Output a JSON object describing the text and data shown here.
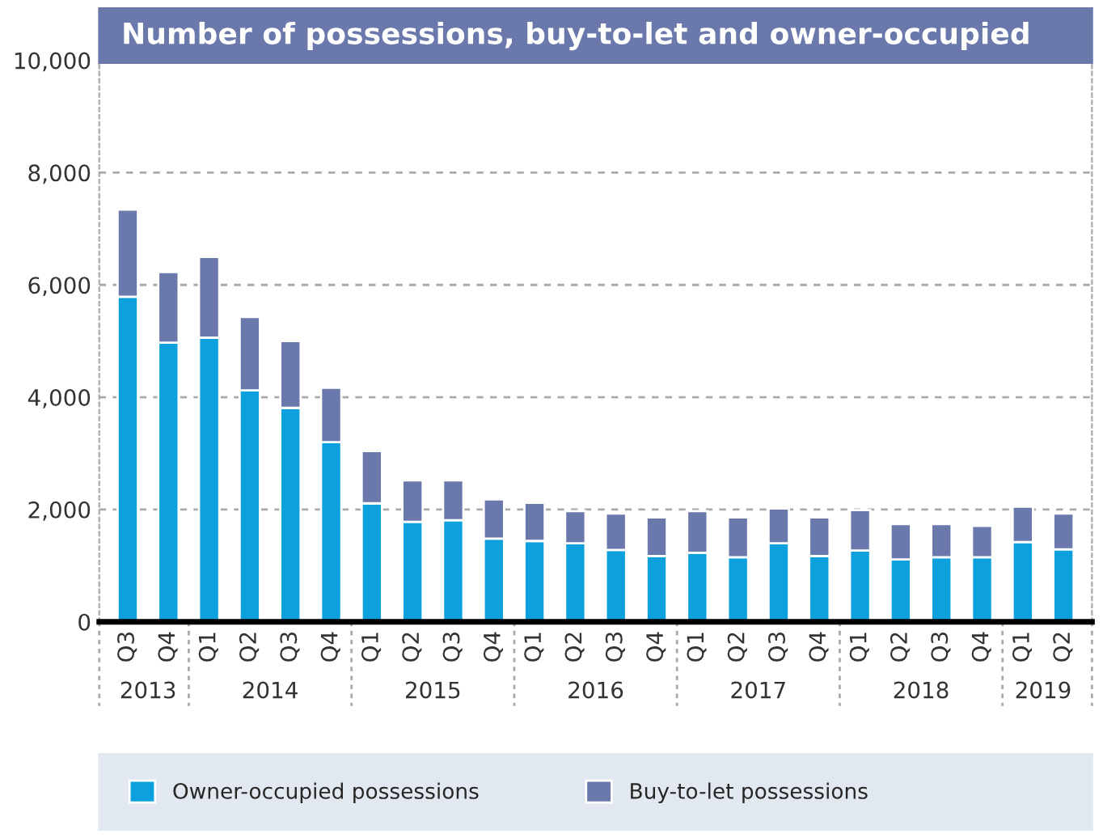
{
  "chart_data": {
    "type": "bar",
    "title": "Number of possessions, buy-to-let and owner-occupied",
    "categories": [
      "Q3",
      "Q4",
      "Q1",
      "Q2",
      "Q3",
      "Q4",
      "Q1",
      "Q2",
      "Q3",
      "Q4",
      "Q1",
      "Q2",
      "Q3",
      "Q4",
      "Q1",
      "Q2",
      "Q3",
      "Q4",
      "Q1",
      "Q2",
      "Q3",
      "Q4",
      "Q1",
      "Q2"
    ],
    "annotations": [
      "2013",
      "2014",
      "2015",
      "2016",
      "2017",
      "2018",
      "2019"
    ],
    "stacked": true,
    "series": [
      {
        "name": "Owner-occupied possessions",
        "color": "#0ca0dc",
        "values": [
          5790,
          4970,
          5060,
          4120,
          3810,
          3200,
          2110,
          1780,
          1810,
          1480,
          1440,
          1400,
          1280,
          1170,
          1230,
          1150,
          1400,
          1170,
          1270,
          1110,
          1150,
          1150,
          1420,
          1290
        ]
      },
      {
        "name": "Buy-to-let possessions",
        "color": "#6b78ab",
        "values": [
          1550,
          1260,
          1440,
          1310,
          1190,
          970,
          930,
          740,
          710,
          700,
          680,
          570,
          650,
          690,
          740,
          710,
          620,
          690,
          720,
          630,
          590,
          560,
          630,
          640
        ]
      }
    ],
    "ylim": [
      0,
      10000
    ],
    "yticks": [
      {
        "value": 0,
        "label": "0"
      },
      {
        "value": 2000,
        "label": "2,000"
      },
      {
        "value": 4000,
        "label": "4,000"
      },
      {
        "value": 6000,
        "label": "6,000"
      },
      {
        "value": 8000,
        "label": "8,000"
      },
      {
        "value": 10000,
        "label": "10,000"
      }
    ],
    "grid": "y",
    "legend": "bottom"
  }
}
